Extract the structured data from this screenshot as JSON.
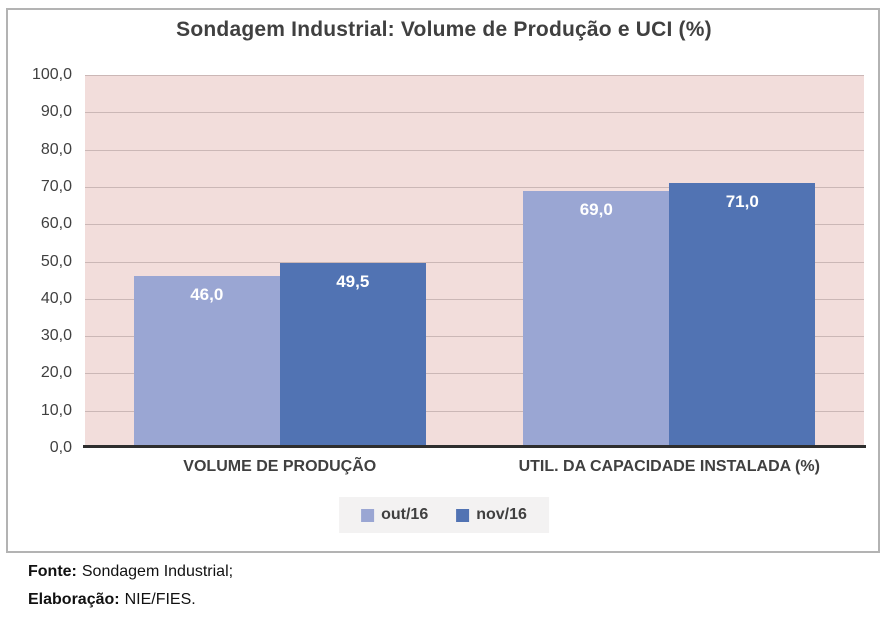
{
  "chart_data": {
    "type": "bar",
    "title": "Sondagem Industrial: Volume de Produção e UCI (%)",
    "categories": [
      "VOLUME DE PRODUÇÃO",
      "UTIL. DA CAPACIDADE INSTALADA (%)"
    ],
    "series": [
      {
        "name": "out/16",
        "color": "#9AA6D3",
        "values": [
          46.0,
          69.0
        ],
        "labels": [
          "46,0",
          "69,0"
        ]
      },
      {
        "name": "nov/16",
        "color": "#5173B3",
        "values": [
          49.5,
          71.0
        ],
        "labels": [
          "49,5",
          "71,0"
        ]
      }
    ],
    "ylim": [
      0,
      100
    ],
    "ytick_step": 10,
    "yticks": [
      "100,0",
      "90,0",
      "80,0",
      "70,0",
      "60,0",
      "50,0",
      "40,0",
      "30,0",
      "20,0",
      "10,0",
      "0,0"
    ],
    "grid": true,
    "legend_position": "bottom",
    "plot_bg": "#F2DDDB",
    "grid_color": "#CBB7B6",
    "axis_color": "#2E2E2E",
    "title_color": "#404040"
  },
  "footer": {
    "source_label": "Fonte:",
    "source_text": "Sondagem Industrial;",
    "elaboration_label": "Elaboração:",
    "elaboration_text": "NIE/FIES."
  }
}
